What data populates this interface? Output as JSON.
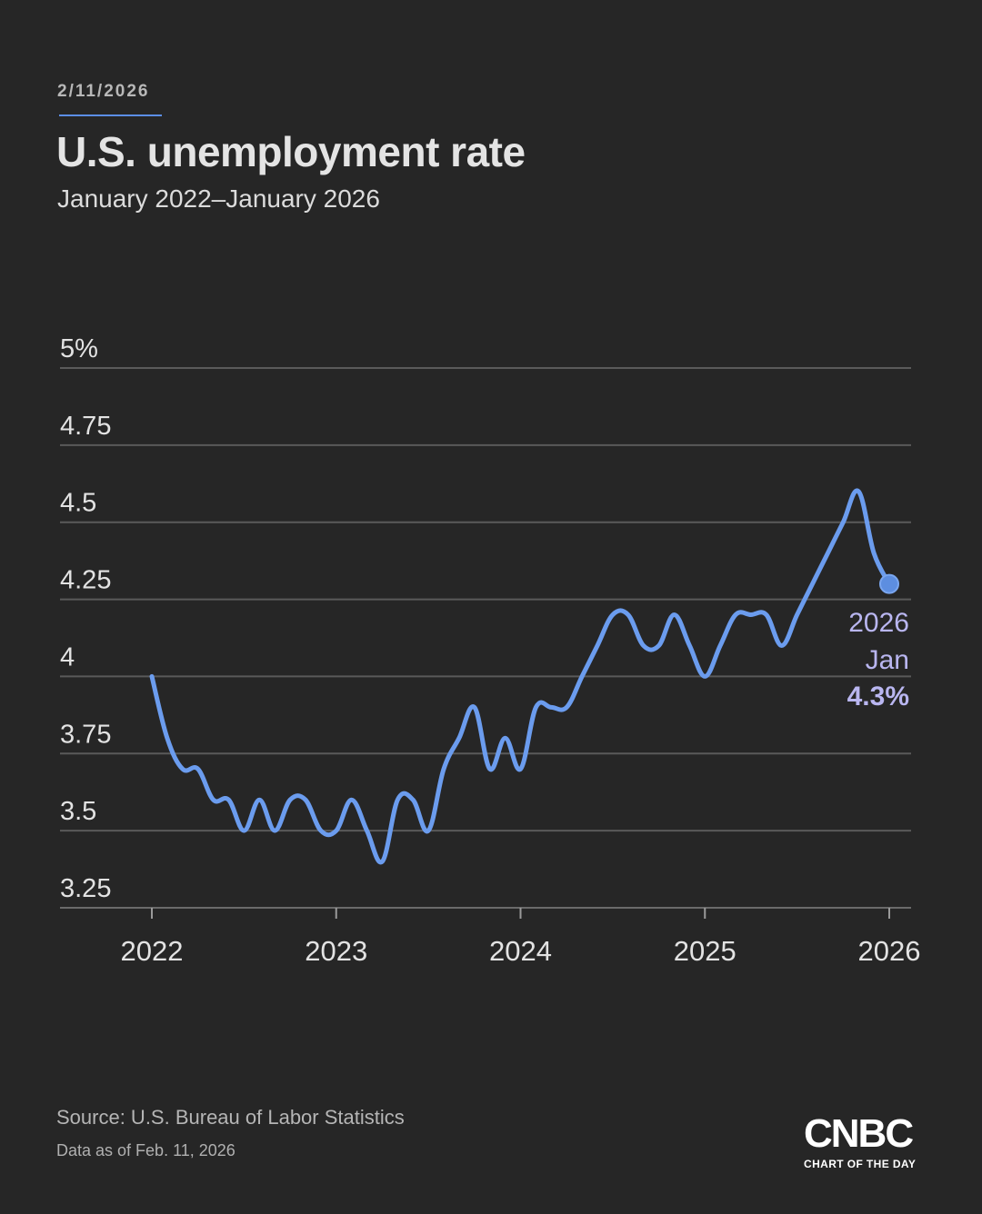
{
  "header": {
    "date": "2/11/2026",
    "title": "U.S. unemployment rate",
    "subtitle": "January 2022–January 2026"
  },
  "footer": {
    "source": "Source: U.S. Bureau of Labor Statistics",
    "as_of": "Data as of Feb. 11, 2026"
  },
  "logo": {
    "mark": "CNBC",
    "tagline": "CHART OF THE DAY"
  },
  "colors": {
    "background": "#262626",
    "line": "#6b9cee",
    "callout": "#b9b6f0",
    "grid": "#5a5a5a"
  },
  "chart_data": {
    "type": "line",
    "title": "U.S. unemployment rate",
    "xlabel": "",
    "ylabel": "",
    "ylim": [
      3.25,
      5
    ],
    "y_ticks": [
      5,
      4.75,
      4.5,
      4.25,
      4,
      3.75,
      3.5,
      3.25
    ],
    "y_tick_labels": [
      "5%",
      "4.75",
      "4.5",
      "4.25",
      "4",
      "3.75",
      "3.5",
      "3.25"
    ],
    "x_ticks": [
      2022,
      2023,
      2024,
      2025,
      2026
    ],
    "x_tick_labels": [
      "2022",
      "2023",
      "2024",
      "2025",
      "2026"
    ],
    "grid": true,
    "series": [
      {
        "name": "Unemployment rate",
        "values": [
          4.0,
          3.8,
          3.7,
          3.7,
          3.6,
          3.6,
          3.5,
          3.6,
          3.5,
          3.6,
          3.6,
          3.5,
          3.5,
          3.6,
          3.5,
          3.4,
          3.6,
          3.6,
          3.5,
          3.7,
          3.8,
          3.9,
          3.7,
          3.8,
          3.7,
          3.9,
          3.9,
          3.9,
          4.0,
          4.1,
          4.2,
          4.2,
          4.1,
          4.1,
          4.2,
          4.1,
          4.0,
          4.1,
          4.2,
          4.2,
          4.2,
          4.1,
          4.2,
          4.3,
          4.4,
          4.5,
          4.6,
          4.4,
          4.3
        ]
      }
    ],
    "callout": {
      "year": "2026",
      "month": "Jan",
      "value": "4.3%"
    }
  }
}
